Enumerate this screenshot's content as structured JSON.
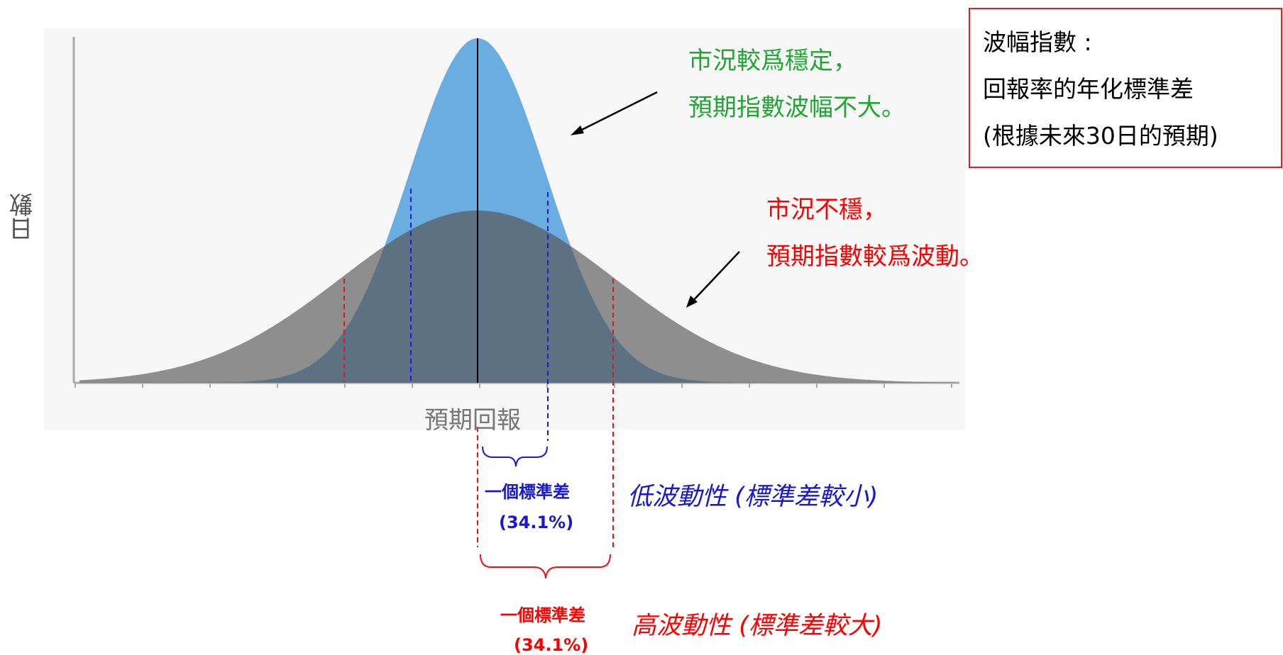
{
  "axes": {
    "y_label": "日數",
    "x_label": "預期回報"
  },
  "info_box": {
    "line1": "波幅指數 :",
    "line2": "回報率的年化標準差",
    "line3": "(根據未來30日的預期)"
  },
  "low_volatility": {
    "note_line1": "市況較爲穩定，",
    "note_line2": "預期指數波幅不大。",
    "std_label": "一個標準差",
    "percent": "(34.1%)",
    "title": "低波動性 (標準差較小)",
    "curve_color": "#5aa5de",
    "marker_color": "#1a1ad8",
    "sigma": 1
  },
  "high_volatility": {
    "note_line1": "市況不穩，",
    "note_line2": "預期指數較爲波動。",
    "std_label": "一個標準差",
    "percent": "(34.1%)",
    "title": "高波動性 (標準差較大)",
    "curve_color": "#7f7f7f",
    "marker_color": "#ee1111",
    "sigma": 2
  },
  "colors": {
    "note_green": "#22a534",
    "note_red": "#ff0000",
    "box_border": "#e02020",
    "axis": "#aaaaaa"
  }
}
